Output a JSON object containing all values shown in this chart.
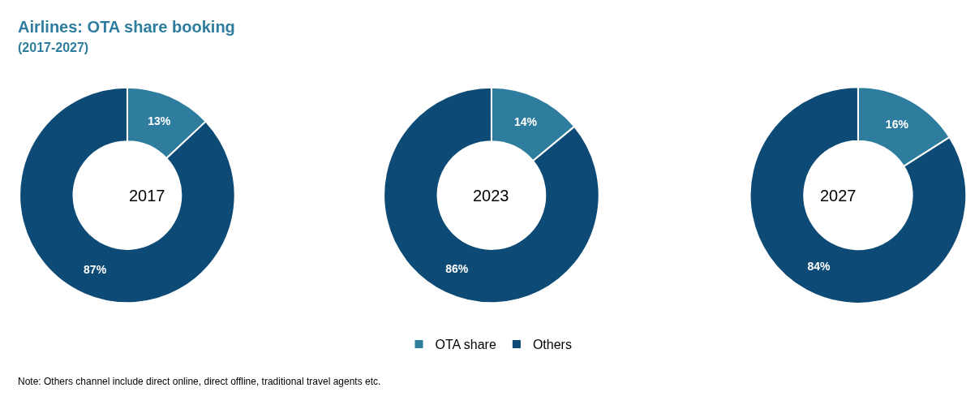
{
  "chart_data": [
    {
      "type": "donut",
      "title": "Airlines: OTA share booking",
      "subtitle": "(2017-2027)",
      "categories": [
        "OTA share",
        "Others"
      ],
      "values": [
        13,
        87
      ],
      "value_labels": [
        "13%",
        "87%"
      ],
      "colors": [
        "#2f7d9e",
        "#0d4a75"
      ],
      "legend": "bottom",
      "annotations": [
        "2017",
        "Note: Others channel include direct online, direct offline, traditional travel agents etc."
      ]
    },
    {
      "type": "donut",
      "categories": [
        null,
        null
      ],
      "values": [
        14,
        86
      ],
      "value_labels": [
        "14%",
        "86%"
      ],
      "colors": [
        "#2f7d9e",
        "#0d4a75"
      ],
      "legend": false,
      "annotations": [
        "2023"
      ]
    },
    {
      "type": "donut",
      "categories": [
        null,
        null
      ],
      "values": [
        16,
        84
      ],
      "value_labels": [
        "16%",
        "84%"
      ],
      "colors": [
        "#2f7d9e",
        "#0d4a75"
      ],
      "legend": false,
      "annotations": [
        "2027"
      ]
    }
  ]
}
